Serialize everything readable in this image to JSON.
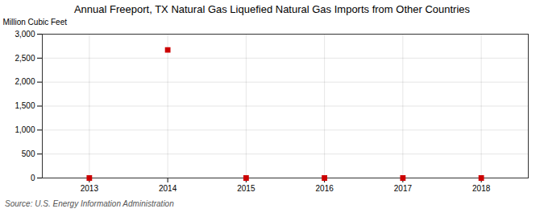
{
  "chart_data": {
    "type": "scatter",
    "title": "Annual Freeport, TX Natural Gas Liquefied Natural Gas Imports from Other Countries",
    "ylabel": "Million Cubic Feet",
    "source": "Source: U.S. Energy Information Administration",
    "x": [
      2013,
      2014,
      2015,
      2016,
      2017,
      2018
    ],
    "values": [
      0,
      2670,
      0,
      0,
      0,
      0
    ],
    "color": "#cc0000",
    "marker": "square",
    "xlim": [
      2012.4,
      2018.6
    ],
    "xticks": [
      2013,
      2014,
      2015,
      2016,
      2017,
      2018
    ],
    "ylim": [
      0,
      3000
    ],
    "yticks": [
      0,
      500,
      {
        "value": 1000,
        "label": "1,000"
      },
      {
        "value": 1500,
        "label": "1,500"
      },
      {
        "value": 2000,
        "label": "2,000"
      },
      {
        "value": 2500,
        "label": "2,500"
      },
      {
        "value": 3000,
        "label": "3,000"
      }
    ],
    "grid": true
  }
}
